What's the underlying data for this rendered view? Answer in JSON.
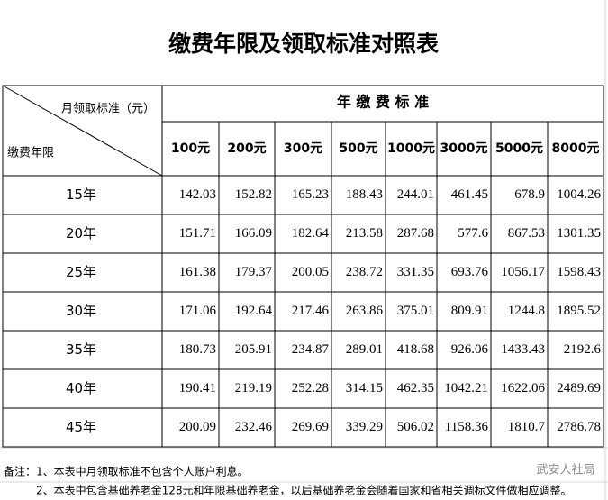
{
  "header": {
    "title": "缴费年限及领取标准对照表"
  },
  "table": {
    "corner_top": "月领取标准（元）",
    "corner_bottom": "缴费年限",
    "group_header": "年 缴 费 标 准",
    "columns": [
      "100元",
      "200元",
      "300元",
      "500元",
      "1000元",
      "3000元",
      "5000元",
      "8000元"
    ],
    "rows": [
      {
        "label": "15年",
        "values": [
          "142.03",
          "152.82",
          "165.23",
          "188.43",
          "244.01",
          "461.45",
          "678.9",
          "1004.26"
        ]
      },
      {
        "label": "20年",
        "values": [
          "151.71",
          "166.09",
          "182.64",
          "213.58",
          "287.68",
          "577.6",
          "867.53",
          "1301.35"
        ]
      },
      {
        "label": "25年",
        "values": [
          "161.38",
          "179.37",
          "200.05",
          "238.72",
          "331.35",
          "693.76",
          "1056.17",
          "1598.43"
        ]
      },
      {
        "label": "30年",
        "values": [
          "171.06",
          "192.64",
          "217.46",
          "263.86",
          "375.01",
          "809.91",
          "1244.8",
          "1895.52"
        ]
      },
      {
        "label": "35年",
        "values": [
          "180.73",
          "205.91",
          "234.87",
          "289.01",
          "418.68",
          "926.06",
          "1433.43",
          "2192.6"
        ]
      },
      {
        "label": "40年",
        "values": [
          "190.41",
          "219.19",
          "252.28",
          "314.15",
          "462.35",
          "1042.21",
          "1622.06",
          "2489.69"
        ]
      },
      {
        "label": "45年",
        "values": [
          "200.09",
          "232.46",
          "269.69",
          "339.29",
          "506.02",
          "1158.36",
          "1810.7",
          "2786.78"
        ]
      }
    ]
  },
  "notes": [
    "备注：1、本表中月领取标准不包含个人账户利息。",
    "2、本表中包含基础养老金128元和年限基础养老金，以后基础养老金会随着国家和省相关调标文件做相应调整。"
  ],
  "watermark": "武安人社局"
}
